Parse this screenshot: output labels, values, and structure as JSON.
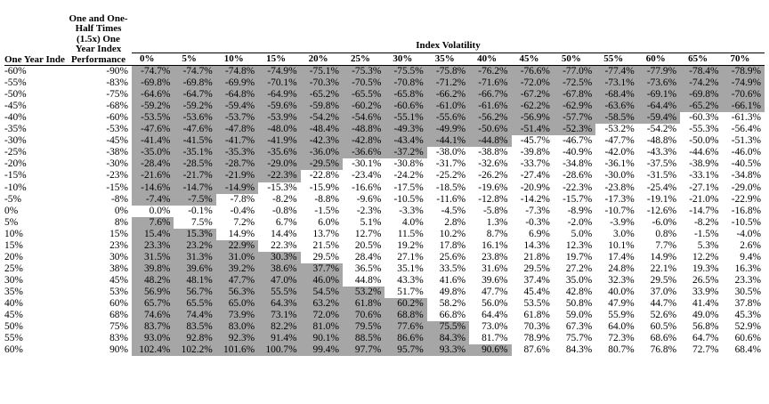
{
  "header": {
    "col0": "One Year Index Performance",
    "col1": "One and One-Half Times (1.5x) One Year Index Performance",
    "group": "Index Volatility"
  },
  "volatilities": [
    "0%",
    "5%",
    "10%",
    "15%",
    "20%",
    "25%",
    "30%",
    "35%",
    "40%",
    "45%",
    "50%",
    "55%",
    "60%",
    "65%",
    "70%"
  ],
  "rows": [
    {
      "perf": "-60%",
      "x15": "-90%",
      "vals": [
        "-74.7%",
        "-74.7%",
        "-74.8%",
        "-74.9%",
        "-75.1%",
        "-75.3%",
        "-75.5%",
        "-75.8%",
        "-76.2%",
        "-76.6%",
        "-77.0%",
        "-77.4%",
        "-77.9%",
        "-78.4%",
        "-78.9%"
      ],
      "shaded": 15
    },
    {
      "perf": "-55%",
      "x15": "-83%",
      "vals": [
        "-69.8%",
        "-69.8%",
        "-69.9%",
        "-70.1%",
        "-70.3%",
        "-70.5%",
        "-70.8%",
        "-71.2%",
        "-71.6%",
        "-72.0%",
        "-72.5%",
        "-73.1%",
        "-73.6%",
        "-74.2%",
        "-74.9%"
      ],
      "shaded": 15
    },
    {
      "perf": "-50%",
      "x15": "-75%",
      "vals": [
        "-64.6%",
        "-64.7%",
        "-64.8%",
        "-64.9%",
        "-65.2%",
        "-65.5%",
        "-65.8%",
        "-66.2%",
        "-66.7%",
        "-67.2%",
        "-67.8%",
        "-68.4%",
        "-69.1%",
        "-69.8%",
        "-70.6%"
      ],
      "shaded": 15
    },
    {
      "perf": "-45%",
      "x15": "-68%",
      "vals": [
        "-59.2%",
        "-59.2%",
        "-59.4%",
        "-59.6%",
        "-59.8%",
        "-60.2%",
        "-60.6%",
        "-61.0%",
        "-61.6%",
        "-62.2%",
        "-62.9%",
        "-63.6%",
        "-64.4%",
        "-65.2%",
        "-66.1%"
      ],
      "shaded": 15
    },
    {
      "perf": "-40%",
      "x15": "-60%",
      "vals": [
        "-53.5%",
        "-53.6%",
        "-53.7%",
        "-53.9%",
        "-54.2%",
        "-54.6%",
        "-55.1%",
        "-55.6%",
        "-56.2%",
        "-56.9%",
        "-57.7%",
        "-58.5%",
        "-59.4%",
        "-60.3%",
        "-61.3%"
      ],
      "shaded": 13
    },
    {
      "perf": "-35%",
      "x15": "-53%",
      "vals": [
        "-47.6%",
        "-47.6%",
        "-47.8%",
        "-48.0%",
        "-48.4%",
        "-48.8%",
        "-49.3%",
        "-49.9%",
        "-50.6%",
        "-51.4%",
        "-52.3%",
        "-53.2%",
        "-54.2%",
        "-55.3%",
        "-56.4%"
      ],
      "shaded": 11
    },
    {
      "perf": "-30%",
      "x15": "-45%",
      "vals": [
        "-41.4%",
        "-41.5%",
        "-41.7%",
        "-41.9%",
        "-42.3%",
        "-42.8%",
        "-43.4%",
        "-44.1%",
        "-44.8%",
        "-45.7%",
        "-46.7%",
        "-47.7%",
        "-48.8%",
        "-50.0%",
        "-51.3%"
      ],
      "shaded": 9
    },
    {
      "perf": "-25%",
      "x15": "-38%",
      "vals": [
        "-35.0%",
        "-35.1%",
        "-35.3%",
        "-35.6%",
        "-36.0%",
        "-36.6%",
        "-37.2%",
        "-38.0%",
        "-38.8%",
        "-39.8%",
        "-40.9%",
        "-42.0%",
        "-43.3%",
        "-44.6%",
        "-46.0%"
      ],
      "shaded": 7
    },
    {
      "perf": "-20%",
      "x15": "-30%",
      "vals": [
        "-28.4%",
        "-28.5%",
        "-28.7%",
        "-29.0%",
        "-29.5%",
        "-30.1%",
        "-30.8%",
        "-31.7%",
        "-32.6%",
        "-33.7%",
        "-34.8%",
        "-36.1%",
        "-37.5%",
        "-38.9%",
        "-40.5%"
      ],
      "shaded": 5
    },
    {
      "perf": "-15%",
      "x15": "-23%",
      "vals": [
        "-21.6%",
        "-21.7%",
        "-21.9%",
        "-22.3%",
        "-22.8%",
        "-23.4%",
        "-24.2%",
        "-25.2%",
        "-26.2%",
        "-27.4%",
        "-28.6%",
        "-30.0%",
        "-31.5%",
        "-33.1%",
        "-34.8%"
      ],
      "shaded": 4
    },
    {
      "perf": "-10%",
      "x15": "-15%",
      "vals": [
        "-14.6%",
        "-14.7%",
        "-14.9%",
        "-15.3%",
        "-15.9%",
        "-16.6%",
        "-17.5%",
        "-18.5%",
        "-19.6%",
        "-20.9%",
        "-22.3%",
        "-23.8%",
        "-25.4%",
        "-27.1%",
        "-29.0%"
      ],
      "shaded": 3
    },
    {
      "perf": "-5%",
      "x15": "-8%",
      "vals": [
        "-7.4%",
        "-7.5%",
        "-7.8%",
        "-8.2%",
        "-8.8%",
        "-9.6%",
        "-10.5%",
        "-11.6%",
        "-12.8%",
        "-14.2%",
        "-15.7%",
        "-17.3%",
        "-19.1%",
        "-21.0%",
        "-22.9%"
      ],
      "shaded": 2
    },
    {
      "perf": "0%",
      "x15": "0%",
      "vals": [
        "0.0%",
        "-0.1%",
        "-0.4%",
        "-0.8%",
        "-1.5%",
        "-2.3%",
        "-3.3%",
        "-4.5%",
        "-5.8%",
        "-7.3%",
        "-8.9%",
        "-10.7%",
        "-12.6%",
        "-14.7%",
        "-16.8%"
      ],
      "shaded": 0
    },
    {
      "perf": "5%",
      "x15": "8%",
      "vals": [
        "7.6%",
        "7.5%",
        "7.2%",
        "6.7%",
        "6.0%",
        "5.1%",
        "4.0%",
        "2.8%",
        "1.3%",
        "-0.3%",
        "-2.0%",
        "-3.9%",
        "-6.0%",
        "-8.2%",
        "-10.5%"
      ],
      "shaded": 1
    },
    {
      "perf": "10%",
      "x15": "15%",
      "vals": [
        "15.4%",
        "15.3%",
        "14.9%",
        "14.4%",
        "13.7%",
        "12.7%",
        "11.5%",
        "10.2%",
        "8.7%",
        "6.9%",
        "5.0%",
        "3.0%",
        "0.8%",
        "-1.5%",
        "-4.0%"
      ],
      "shaded": 2
    },
    {
      "perf": "15%",
      "x15": "23%",
      "vals": [
        "23.3%",
        "23.2%",
        "22.9%",
        "22.3%",
        "21.5%",
        "20.5%",
        "19.2%",
        "17.8%",
        "16.1%",
        "14.3%",
        "12.3%",
        "10.1%",
        "7.7%",
        "5.3%",
        "2.6%"
      ],
      "shaded": 3
    },
    {
      "perf": "20%",
      "x15": "30%",
      "vals": [
        "31.5%",
        "31.3%",
        "31.0%",
        "30.3%",
        "29.5%",
        "28.4%",
        "27.1%",
        "25.6%",
        "23.8%",
        "21.8%",
        "19.7%",
        "17.4%",
        "14.9%",
        "12.2%",
        "9.4%"
      ],
      "shaded": 4
    },
    {
      "perf": "25%",
      "x15": "38%",
      "vals": [
        "39.8%",
        "39.6%",
        "39.2%",
        "38.6%",
        "37.7%",
        "36.5%",
        "35.1%",
        "33.5%",
        "31.6%",
        "29.5%",
        "27.2%",
        "24.8%",
        "22.1%",
        "19.3%",
        "16.3%"
      ],
      "shaded": 5
    },
    {
      "perf": "30%",
      "x15": "45%",
      "vals": [
        "48.2%",
        "48.1%",
        "47.7%",
        "47.0%",
        "46.0%",
        "44.8%",
        "43.3%",
        "41.6%",
        "39.6%",
        "37.4%",
        "35.0%",
        "32.3%",
        "29.5%",
        "26.5%",
        "23.3%"
      ],
      "shaded": 5
    },
    {
      "perf": "35%",
      "x15": "53%",
      "vals": [
        "56.9%",
        "56.7%",
        "56.3%",
        "55.5%",
        "54.5%",
        "53.2%",
        "51.7%",
        "49.8%",
        "47.7%",
        "45.4%",
        "42.8%",
        "40.0%",
        "37.0%",
        "33.9%",
        "30.5%"
      ],
      "shaded": 6
    },
    {
      "perf": "40%",
      "x15": "60%",
      "vals": [
        "65.7%",
        "65.5%",
        "65.0%",
        "64.3%",
        "63.2%",
        "61.8%",
        "60.2%",
        "58.2%",
        "56.0%",
        "53.5%",
        "50.8%",
        "47.9%",
        "44.7%",
        "41.4%",
        "37.8%"
      ],
      "shaded": 7
    },
    {
      "perf": "45%",
      "x15": "68%",
      "vals": [
        "74.6%",
        "74.4%",
        "73.9%",
        "73.1%",
        "72.0%",
        "70.6%",
        "68.8%",
        "66.8%",
        "64.4%",
        "61.8%",
        "59.0%",
        "55.9%",
        "52.6%",
        "49.0%",
        "45.3%"
      ],
      "shaded": 7
    },
    {
      "perf": "50%",
      "x15": "75%",
      "vals": [
        "83.7%",
        "83.5%",
        "83.0%",
        "82.2%",
        "81.0%",
        "79.5%",
        "77.6%",
        "75.5%",
        "73.0%",
        "70.3%",
        "67.3%",
        "64.0%",
        "60.5%",
        "56.8%",
        "52.9%"
      ],
      "shaded": 8
    },
    {
      "perf": "55%",
      "x15": "83%",
      "vals": [
        "93.0%",
        "92.8%",
        "92.3%",
        "91.4%",
        "90.1%",
        "88.5%",
        "86.6%",
        "84.3%",
        "81.7%",
        "78.9%",
        "75.7%",
        "72.3%",
        "68.6%",
        "64.7%",
        "60.6%"
      ],
      "shaded": 8
    },
    {
      "perf": "60%",
      "x15": "90%",
      "vals": [
        "102.4%",
        "102.2%",
        "101.6%",
        "100.7%",
        "99.4%",
        "97.7%",
        "95.7%",
        "93.3%",
        "90.6%",
        "87.6%",
        "84.3%",
        "80.7%",
        "76.8%",
        "72.7%",
        "68.4%"
      ],
      "shaded": 9
    }
  ]
}
